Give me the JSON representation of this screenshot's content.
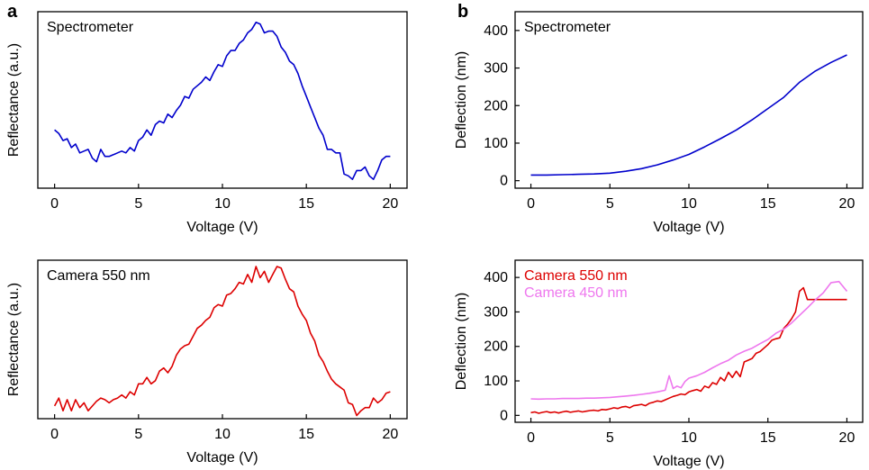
{
  "panels": {
    "left": "a",
    "right": "b"
  },
  "chart_data": [
    {
      "type": "line",
      "panel": "a",
      "xlabel": "Voltage (V)",
      "ylabel": "Reflectance (a.u.)",
      "xlim": [
        -1,
        21
      ],
      "ylim": [
        0,
        1
      ],
      "xticks": [
        "0",
        "5",
        "10",
        "15",
        "20"
      ],
      "yticks": [],
      "grid": false,
      "series": [
        {
          "name": "Spectrometer",
          "color": "#0000cc",
          "x": [
            0,
            0.25,
            0.5,
            0.75,
            1,
            1.25,
            1.5,
            1.75,
            2,
            2.25,
            2.5,
            2.75,
            3,
            3.25,
            3.5,
            3.75,
            4,
            4.25,
            4.5,
            4.75,
            5,
            5.25,
            5.5,
            5.75,
            6,
            6.25,
            6.5,
            6.75,
            7,
            7.25,
            7.5,
            7.75,
            8,
            8.25,
            8.5,
            8.75,
            9,
            9.25,
            9.5,
            9.75,
            10,
            10.25,
            10.5,
            10.75,
            11,
            11.25,
            11.5,
            11.75,
            12,
            12.25,
            12.5,
            12.75,
            13,
            13.25,
            13.5,
            13.75,
            14,
            14.25,
            14.5,
            14.75,
            15,
            15.25,
            15.5,
            15.75,
            16,
            16.25,
            16.5,
            16.75,
            17,
            17.25,
            17.5,
            17.75,
            18,
            18.25,
            18.5,
            18.75,
            19,
            19.25,
            19.5,
            19.75,
            20
          ],
          "y": [
            0.33,
            0.31,
            0.27,
            0.28,
            0.23,
            0.25,
            0.2,
            0.21,
            0.22,
            0.17,
            0.15,
            0.22,
            0.18,
            0.18,
            0.19,
            0.2,
            0.21,
            0.2,
            0.23,
            0.21,
            0.27,
            0.29,
            0.33,
            0.3,
            0.36,
            0.38,
            0.37,
            0.42,
            0.4,
            0.44,
            0.47,
            0.52,
            0.51,
            0.56,
            0.58,
            0.6,
            0.63,
            0.61,
            0.66,
            0.7,
            0.69,
            0.75,
            0.78,
            0.78,
            0.82,
            0.84,
            0.88,
            0.9,
            0.94,
            0.93,
            0.88,
            0.89,
            0.89,
            0.86,
            0.8,
            0.77,
            0.72,
            0.7,
            0.65,
            0.58,
            0.52,
            0.46,
            0.4,
            0.34,
            0.3,
            0.22,
            0.22,
            0.2,
            0.2,
            0.08,
            0.07,
            0.05,
            0.1,
            0.1,
            0.12,
            0.07,
            0.05,
            0.1,
            0.16,
            0.18,
            0.18
          ]
        }
      ]
    },
    {
      "type": "line",
      "panel": "a",
      "xlabel": "Voltage (V)",
      "ylabel": "Reflectance (a.u.)",
      "xlim": [
        -1,
        21
      ],
      "ylim": [
        0,
        1
      ],
      "xticks": [
        "0",
        "5",
        "10",
        "15",
        "20"
      ],
      "yticks": [],
      "grid": false,
      "series": [
        {
          "name": "Camera 550 nm",
          "color": "#dd0000",
          "x": [
            0,
            0.25,
            0.5,
            0.75,
            1,
            1.25,
            1.5,
            1.75,
            2,
            2.25,
            2.5,
            2.75,
            3,
            3.25,
            3.5,
            3.75,
            4,
            4.25,
            4.5,
            4.75,
            5,
            5.25,
            5.5,
            5.75,
            6,
            6.25,
            6.5,
            6.75,
            7,
            7.25,
            7.5,
            7.75,
            8,
            8.25,
            8.5,
            8.75,
            9,
            9.25,
            9.5,
            9.75,
            10,
            10.25,
            10.5,
            10.75,
            11,
            11.25,
            11.5,
            11.75,
            12,
            12.25,
            12.5,
            12.75,
            13,
            13.25,
            13.5,
            13.75,
            14,
            14.25,
            14.5,
            14.75,
            15,
            15.25,
            15.5,
            15.75,
            16,
            16.25,
            16.5,
            16.75,
            17,
            17.25,
            17.5,
            17.75,
            18,
            18.25,
            18.5,
            18.75,
            19,
            19.25,
            19.5,
            19.75,
            20
          ],
          "y": [
            0.08,
            0.13,
            0.05,
            0.12,
            0.05,
            0.12,
            0.07,
            0.1,
            0.05,
            0.08,
            0.11,
            0.13,
            0.12,
            0.1,
            0.12,
            0.13,
            0.15,
            0.13,
            0.17,
            0.15,
            0.22,
            0.22,
            0.26,
            0.22,
            0.24,
            0.3,
            0.32,
            0.29,
            0.33,
            0.4,
            0.44,
            0.46,
            0.47,
            0.52,
            0.57,
            0.59,
            0.62,
            0.64,
            0.7,
            0.72,
            0.71,
            0.78,
            0.79,
            0.82,
            0.86,
            0.85,
            0.91,
            0.86,
            0.96,
            0.89,
            0.93,
            0.86,
            0.91,
            0.96,
            0.95,
            0.88,
            0.82,
            0.8,
            0.71,
            0.66,
            0.62,
            0.54,
            0.49,
            0.4,
            0.36,
            0.3,
            0.25,
            0.22,
            0.2,
            0.18,
            0.1,
            0.09,
            0.02,
            0.05,
            0.07,
            0.07,
            0.13,
            0.1,
            0.12,
            0.16,
            0.17
          ]
        }
      ]
    },
    {
      "type": "line",
      "panel": "b",
      "xlabel": "Voltage (V)",
      "ylabel": "Deflection (nm)",
      "xlim": [
        -1,
        21
      ],
      "ylim": [
        -20,
        450
      ],
      "xticks": [
        "0",
        "5",
        "10",
        "15",
        "20"
      ],
      "yticks": [
        "0",
        "100",
        "200",
        "300",
        "400"
      ],
      "grid": false,
      "series": [
        {
          "name": "Spectrometer",
          "color": "#0000cc",
          "x": [
            0,
            1,
            2,
            3,
            4,
            5,
            6,
            7,
            8,
            9,
            10,
            11,
            12,
            13,
            14,
            15,
            16,
            17,
            18,
            19,
            20
          ],
          "y": [
            15,
            15,
            16,
            17,
            18,
            20,
            25,
            32,
            42,
            55,
            70,
            90,
            112,
            135,
            162,
            192,
            222,
            262,
            292,
            315,
            335
          ]
        }
      ]
    },
    {
      "type": "line",
      "panel": "b",
      "xlabel": "Voltage (V)",
      "ylabel": "Deflection (nm)",
      "xlim": [
        -1,
        21
      ],
      "ylim": [
        -20,
        450
      ],
      "xticks": [
        "0",
        "5",
        "10",
        "15",
        "20"
      ],
      "yticks": [
        "0",
        "100",
        "200",
        "300",
        "400"
      ],
      "grid": false,
      "series": [
        {
          "name": "Camera 550 nm",
          "color": "#dd0000",
          "x": [
            0,
            0.25,
            0.5,
            0.75,
            1,
            1.25,
            1.5,
            1.75,
            2,
            2.25,
            2.5,
            2.75,
            3,
            3.25,
            3.5,
            3.75,
            4,
            4.25,
            4.5,
            4.75,
            5,
            5.25,
            5.5,
            5.75,
            6,
            6.25,
            6.5,
            6.75,
            7,
            7.25,
            7.5,
            7.75,
            8,
            8.25,
            8.5,
            8.75,
            9,
            9.25,
            9.5,
            9.75,
            10,
            10.25,
            10.5,
            10.75,
            11,
            11.25,
            11.5,
            11.75,
            12,
            12.25,
            12.5,
            12.75,
            13,
            13.25,
            13.5,
            13.75,
            14,
            14.25,
            14.5,
            14.75,
            15,
            15.25,
            15.5,
            15.75,
            16,
            16.25,
            16.5,
            16.75,
            17,
            17.25,
            17.5,
            17.75,
            18,
            18.25,
            18.5,
            18.75,
            19,
            19.25,
            19.5,
            19.75,
            20
          ],
          "y": [
            8,
            10,
            6,
            9,
            11,
            8,
            10,
            7,
            10,
            12,
            9,
            11,
            13,
            10,
            12,
            14,
            15,
            13,
            17,
            16,
            19,
            22,
            20,
            24,
            26,
            22,
            28,
            30,
            32,
            28,
            35,
            38,
            42,
            40,
            45,
            50,
            55,
            58,
            62,
            60,
            68,
            72,
            75,
            70,
            85,
            80,
            95,
            90,
            110,
            100,
            125,
            110,
            128,
            112,
            155,
            160,
            165,
            180,
            185,
            195,
            205,
            218,
            222,
            225,
            252,
            265,
            280,
            300,
            360,
            370,
            336,
            336,
            336,
            336,
            336,
            336,
            336,
            336,
            336,
            336,
            336
          ]
        },
        {
          "name": "Camera 450 nm",
          "color": "#ee77ee",
          "x": [
            0,
            0.5,
            1,
            1.5,
            2,
            2.5,
            3,
            3.5,
            4,
            4.5,
            5,
            5.5,
            6,
            6.5,
            7,
            7.5,
            8,
            8.5,
            8.75,
            9,
            9.25,
            9.5,
            9.75,
            10,
            10.5,
            11,
            11.5,
            12,
            12.5,
            13,
            13.5,
            14,
            14.5,
            15,
            15.5,
            16,
            16.5,
            17,
            17.5,
            18,
            18.5,
            19,
            19.5,
            20
          ],
          "y": [
            48,
            47,
            48,
            48,
            49,
            49,
            49,
            50,
            50,
            51,
            52,
            54,
            56,
            58,
            61,
            64,
            68,
            73,
            115,
            78,
            85,
            80,
            98,
            108,
            115,
            125,
            138,
            150,
            160,
            175,
            186,
            195,
            208,
            220,
            238,
            250,
            268,
            290,
            312,
            335,
            355,
            385,
            388,
            360
          ]
        }
      ]
    }
  ]
}
